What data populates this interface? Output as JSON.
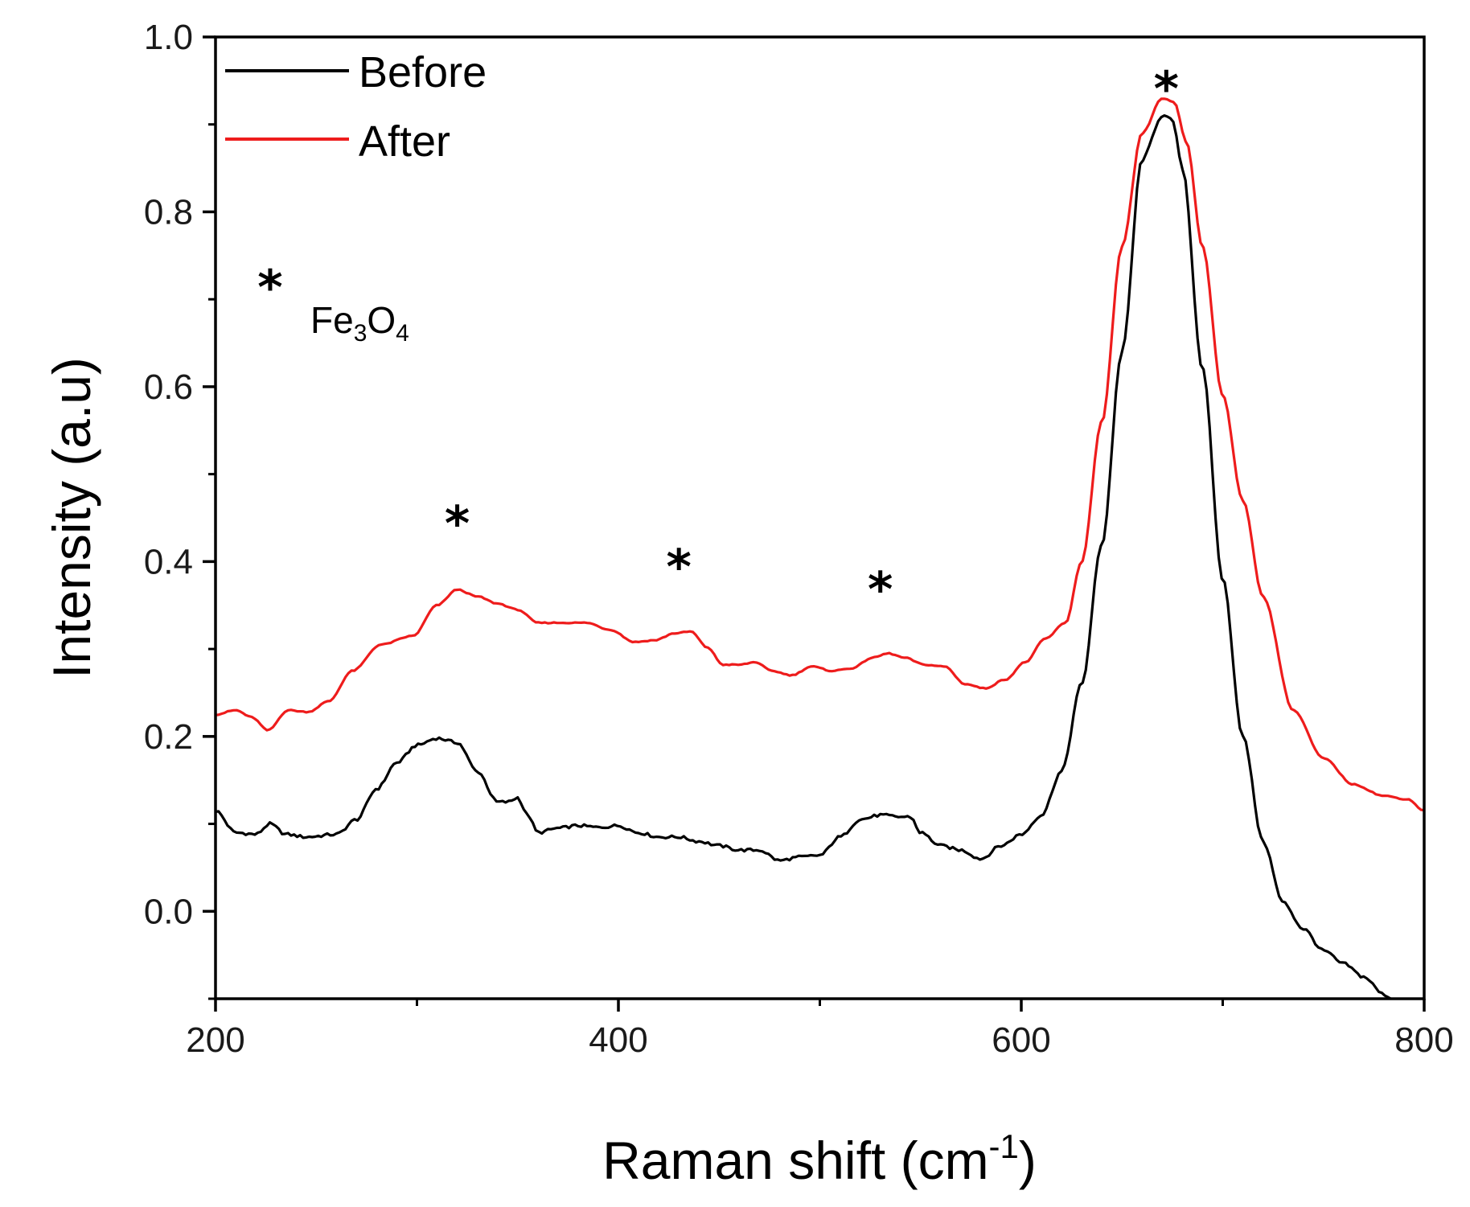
{
  "chart_data": {
    "type": "line",
    "xlabel": "Raman shift (cm",
    "xlabel_superscript": "-1",
    "xlabel_close": ")",
    "ylabel": "Intensity (a.u)",
    "xlim": [
      200,
      800
    ],
    "ylim": [
      -0.1,
      1.0
    ],
    "x_ticks": [
      200,
      400,
      600,
      800
    ],
    "x_minor_ticks": [
      300,
      500,
      700
    ],
    "x_tick_labels": [
      "200",
      "400",
      "600",
      "800"
    ],
    "y_ticks": [
      0.0,
      0.2,
      0.4,
      0.6,
      0.8,
      1.0
    ],
    "y_minor_ticks": [
      -0.1,
      0.1,
      0.3,
      0.5,
      0.7,
      0.9
    ],
    "y_tick_labels": [
      "0.0",
      "0.2",
      "0.4",
      "0.6",
      "0.8",
      "1.0"
    ],
    "grid": false,
    "legend_position": "top-left",
    "series": [
      {
        "name": "Before",
        "color": "#000000",
        "x": [
          200,
          210,
          220,
          227,
          235,
          245,
          260,
          270,
          280,
          290,
          300,
          310,
          320,
          330,
          340,
          345,
          350,
          355,
          360,
          370,
          380,
          390,
          400,
          410,
          420,
          430,
          440,
          450,
          460,
          470,
          480,
          490,
          500,
          510,
          520,
          530,
          540,
          545,
          550,
          560,
          570,
          580,
          590,
          600,
          610,
          620,
          630,
          640,
          650,
          660,
          670,
          675,
          680,
          690,
          700,
          710,
          720,
          730,
          740,
          750,
          760,
          770,
          780,
          784
        ],
        "y": [
          0.115,
          0.09,
          0.088,
          0.1,
          0.088,
          0.085,
          0.088,
          0.105,
          0.14,
          0.17,
          0.19,
          0.198,
          0.193,
          0.16,
          0.125,
          0.125,
          0.13,
          0.11,
          0.09,
          0.095,
          0.098,
          0.096,
          0.098,
          0.09,
          0.085,
          0.085,
          0.08,
          0.075,
          0.07,
          0.07,
          0.058,
          0.062,
          0.064,
          0.085,
          0.105,
          0.11,
          0.108,
          0.108,
          0.09,
          0.075,
          0.07,
          0.06,
          0.075,
          0.088,
          0.11,
          0.16,
          0.26,
          0.42,
          0.64,
          0.86,
          0.91,
          0.905,
          0.85,
          0.62,
          0.38,
          0.2,
          0.08,
          0.01,
          -0.02,
          -0.045,
          -0.06,
          -0.075,
          -0.095,
          -0.1
        ]
      },
      {
        "name": "After",
        "color": "#ee1c1c",
        "x": [
          200,
          210,
          218,
          226,
          236,
          246,
          256,
          268,
          282,
          298,
          310,
          320,
          330,
          340,
          350,
          360,
          372,
          384,
          396,
          408,
          418,
          428,
          436,
          444,
          452,
          460,
          468,
          476,
          486,
          496,
          506,
          516,
          526,
          534,
          542,
          552,
          562,
          572,
          582,
          592,
          602,
          612,
          622,
          630,
          640,
          650,
          660,
          670,
          676,
          682,
          690,
          700,
          710,
          720,
          735,
          750,
          765,
          780,
          792,
          800
        ],
        "y": [
          0.225,
          0.23,
          0.222,
          0.207,
          0.23,
          0.228,
          0.24,
          0.275,
          0.305,
          0.315,
          0.35,
          0.368,
          0.36,
          0.352,
          0.345,
          0.33,
          0.33,
          0.33,
          0.322,
          0.308,
          0.31,
          0.318,
          0.32,
          0.302,
          0.282,
          0.282,
          0.285,
          0.275,
          0.27,
          0.28,
          0.275,
          0.278,
          0.29,
          0.295,
          0.29,
          0.282,
          0.28,
          0.26,
          0.255,
          0.265,
          0.285,
          0.312,
          0.33,
          0.4,
          0.56,
          0.76,
          0.89,
          0.93,
          0.925,
          0.88,
          0.76,
          0.59,
          0.47,
          0.36,
          0.23,
          0.175,
          0.145,
          0.132,
          0.128,
          0.115
        ]
      }
    ],
    "annotations": {
      "peak_marker": "*",
      "peak_marker_x": [
        320,
        430,
        530,
        672
      ],
      "legend_note_symbol": "*",
      "legend_note_main": "Fe",
      "legend_note_sub1": "3",
      "legend_note_mid": "O",
      "legend_note_sub2": "4"
    }
  }
}
